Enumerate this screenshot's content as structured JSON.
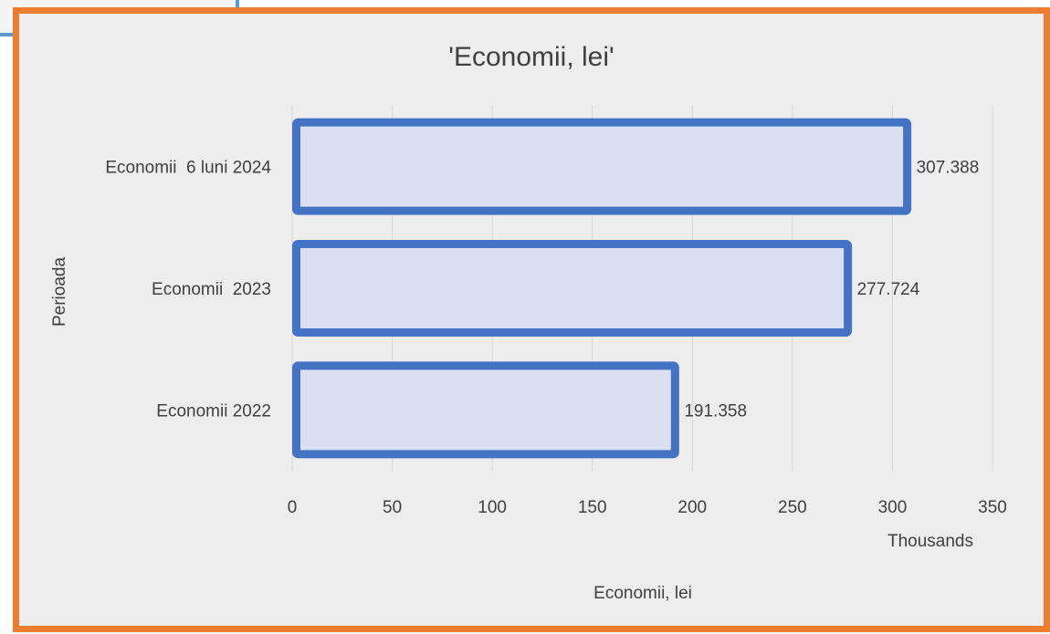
{
  "chart_data": {
    "type": "bar",
    "orientation": "horizontal",
    "title": "'Economii, lei'",
    "xlabel": "Economii, lei",
    "ylabel": "Perioada",
    "x_display_units": "Thousands",
    "categories": [
      "Economii 6 luni 2024",
      "Economii  2023",
      "Economii 2022"
    ],
    "category_labels_display": [
      "Economii  6 luni 2024",
      "Economii  2023",
      "Economii 2022"
    ],
    "values": [
      307.388,
      277.724,
      191.358
    ],
    "data_labels": [
      "307.388",
      "277.724",
      "191.358"
    ],
    "xlim": [
      0,
      350
    ],
    "xticks": [
      0,
      50,
      100,
      150,
      200,
      250,
      300,
      350
    ],
    "xtick_labels": [
      "0",
      "50",
      "100",
      "150",
      "200",
      "250",
      "300",
      "350"
    ],
    "grid": true,
    "colors": {
      "bar_fill": "#dae0f2",
      "bar_outline": "#4472c4",
      "frame_border": "#ed7d31",
      "panel_border": "#5b9bd5",
      "background": "#ededed",
      "gridline": "#d6d6d6",
      "text": "#404040"
    }
  }
}
